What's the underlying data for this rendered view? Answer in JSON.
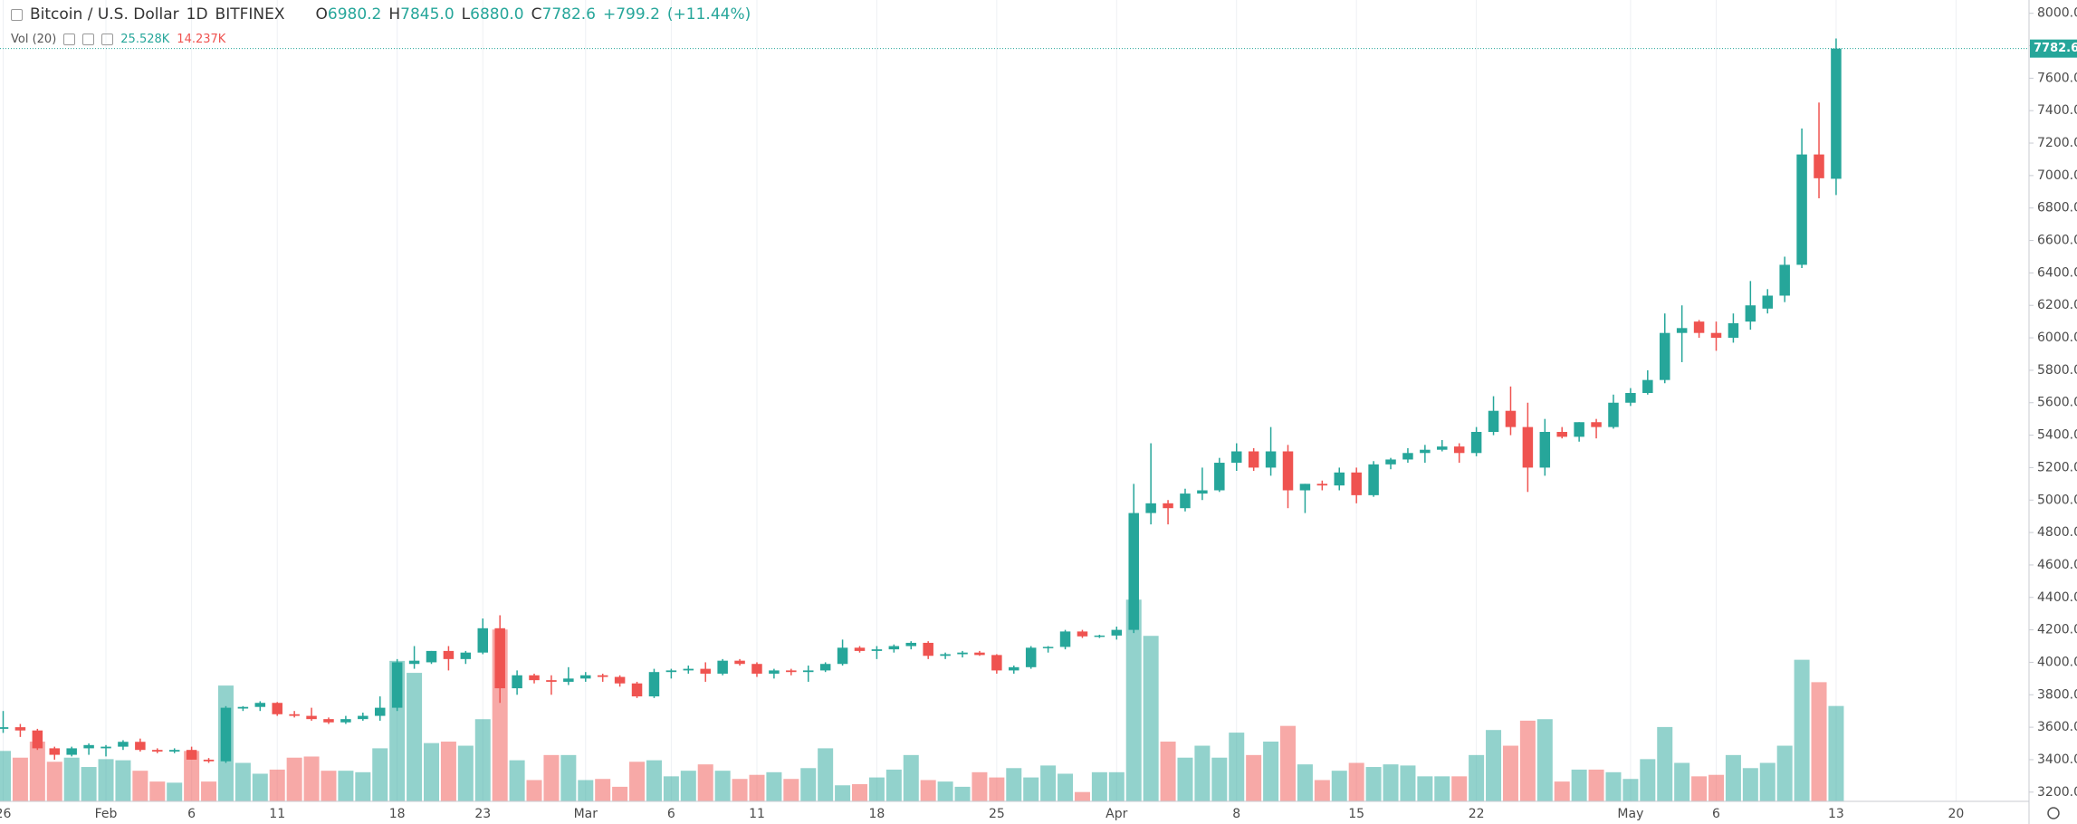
{
  "chart_data": {
    "type": "candlestick",
    "title": "Bitcoin / U.S. Dollar",
    "interval": "1D",
    "exchange": "BITFINEX",
    "legend": {
      "names": [
        "O",
        "H",
        "L",
        "C"
      ],
      "values": [
        6980.2,
        {
          "value": 7845,
          "label": "7845.0"
        },
        {
          "value": 6880,
          "label": "6880.0"
        },
        7782.6
      ]
    },
    "change": {
      "value": 799.2,
      "label": "+799.2"
    },
    "change_pct": {
      "value": 11.44,
      "label": "(+11.44%)"
    },
    "colors": {
      "up": "#26a69a",
      "down": "#ef5350"
    },
    "grid": true,
    "categories": [
      "26",
      null,
      null,
      null,
      null,
      null,
      "Feb",
      null,
      null,
      null,
      null,
      "6",
      null,
      null,
      null,
      null,
      "11",
      null,
      null,
      null,
      null,
      null,
      null,
      "18",
      null,
      null,
      null,
      null,
      "23",
      null,
      null,
      null,
      null,
      null,
      "Mar",
      null,
      null,
      null,
      null,
      "6",
      null,
      null,
      null,
      null,
      "11",
      null,
      null,
      null,
      null,
      null,
      null,
      "18",
      null,
      null,
      null,
      null,
      null,
      null,
      "25",
      null,
      null,
      null,
      null,
      null,
      null,
      "Apr",
      null,
      null,
      null,
      null,
      null,
      null,
      "8",
      null,
      null,
      null,
      null,
      null,
      null,
      "15",
      null,
      null,
      null,
      null,
      null,
      null,
      "22",
      null,
      null,
      null,
      null,
      null,
      null,
      null,
      null,
      "May",
      null,
      null,
      null,
      null,
      "6",
      null,
      null,
      null,
      null,
      null,
      null,
      "13",
      null,
      null,
      null,
      null,
      null,
      null,
      "20",
      null,
      null,
      null,
      null
    ],
    "open": [
      3590,
      3600,
      3580,
      3470,
      3430,
      3470,
      3470,
      3480,
      3510,
      3460,
      3450,
      3460,
      3400,
      3390,
      3715,
      3725,
      3750,
      3680,
      3670,
      3650,
      3630,
      3650,
      3670,
      3720,
      3990,
      4000,
      4070,
      4020,
      4060,
      4210,
      3840,
      3920,
      3890,
      3880,
      3900,
      3920,
      3910,
      3870,
      3790,
      3940,
      3950,
      3960,
      3930,
      4010,
      3990,
      3930,
      3950,
      3940,
      3950,
      3990,
      4090,
      4070,
      4080,
      4100,
      4120,
      4040,
      4050,
      4060,
      4045,
      3950,
      3970,
      4090,
      4095,
      4190,
      4160,
      4165,
      4200,
      4920,
      4980,
      4950,
      5040,
      5060,
      5230,
      5300,
      5200,
      5300,
      5060,
      5100,
      5090,
      5170,
      5030,
      5220,
      5250,
      5290,
      5310,
      5330,
      5290,
      5420,
      5550,
      5450,
      5200,
      5420,
      5390,
      5480,
      5450,
      5600,
      5660,
      5740,
      6030,
      6100,
      6030,
      6000,
      6100,
      6180,
      6260,
      6450,
      7130,
      6980.2,
      null,
      null,
      null,
      null,
      null,
      null,
      null,
      null,
      null,
      null,
      null
    ],
    "high": [
      3700,
      3620,
      3590,
      3480,
      3480,
      3500,
      3490,
      3520,
      3530,
      3470,
      3470,
      3480,
      3410,
      3730,
      3730,
      3760,
      3755,
      3700,
      3720,
      3660,
      3670,
      3690,
      3790,
      4020,
      4100,
      4070,
      4100,
      4070,
      4270,
      4290,
      3950,
      3930,
      3920,
      3970,
      3940,
      3930,
      3920,
      3880,
      3960,
      3960,
      3980,
      4000,
      4020,
      4020,
      4000,
      3960,
      3960,
      3980,
      4000,
      4140,
      4100,
      4100,
      4110,
      4130,
      4130,
      4060,
      4070,
      4070,
      4050,
      3980,
      4100,
      4100,
      4200,
      4200,
      4170,
      4220,
      5100,
      5350,
      5000,
      5070,
      5200,
      5260,
      5350,
      5320,
      5450,
      5340,
      5100,
      5120,
      5200,
      5200,
      5240,
      5260,
      5320,
      5340,
      5370,
      5350,
      5450,
      5640,
      5700,
      5600,
      5500,
      5450,
      5480,
      5500,
      5650,
      5690,
      5800,
      6150,
      6200,
      6110,
      6100,
      6150,
      6350,
      6300,
      6500,
      7290,
      7450,
      7845,
      null,
      null,
      null,
      null,
      null,
      null,
      null,
      null,
      null,
      null,
      null
    ],
    "low": [
      3565,
      3540,
      3460,
      3400,
      3420,
      3430,
      3420,
      3460,
      3450,
      3440,
      3440,
      3400,
      3380,
      3380,
      3700,
      3700,
      3670,
      3660,
      3640,
      3620,
      3620,
      3640,
      3640,
      3700,
      3960,
      3990,
      3950,
      3990,
      4050,
      3750,
      3800,
      3870,
      3800,
      3860,
      3880,
      3880,
      3850,
      3780,
      3780,
      3900,
      3930,
      3880,
      3920,
      3980,
      3910,
      3900,
      3920,
      3880,
      3940,
      3980,
      4060,
      4020,
      4060,
      4080,
      4020,
      4020,
      4030,
      4040,
      3930,
      3930,
      3960,
      4060,
      4080,
      4150,
      4150,
      4140,
      4180,
      4850,
      4850,
      4930,
      5000,
      5050,
      5180,
      5180,
      5150,
      4950,
      4920,
      5060,
      5060,
      4980,
      5020,
      5190,
      5230,
      5230,
      5300,
      5230,
      5270,
      5400,
      5400,
      5050,
      5150,
      5380,
      5360,
      5380,
      5440,
      5580,
      5650,
      5720,
      5850,
      6000,
      5920,
      5970,
      6050,
      6150,
      6220,
      6430,
      6860,
      6880,
      null,
      null,
      null,
      null,
      null,
      null,
      null,
      null,
      null,
      null,
      null
    ],
    "close": [
      3600,
      3580,
      3470,
      3430,
      3470,
      3490,
      3480,
      3510,
      3460,
      3450,
      3460,
      3400,
      3390,
      3720,
      3725,
      3750,
      3680,
      3670,
      3650,
      3630,
      3650,
      3670,
      3720,
      4000,
      4010,
      4070,
      4020,
      4060,
      4210,
      3840,
      3920,
      3890,
      3880,
      3900,
      3920,
      3910,
      3870,
      3790,
      3940,
      3950,
      3960,
      3930,
      4010,
      3990,
      3930,
      3950,
      3940,
      3950,
      3990,
      4090,
      4070,
      4080,
      4100,
      4120,
      4040,
      4050,
      4060,
      4045,
      3950,
      3970,
      4090,
      4095,
      4190,
      4160,
      4165,
      4200,
      4920,
      4980,
      4950,
      5040,
      5060,
      5230,
      5300,
      5200,
      5300,
      5060,
      5100,
      5090,
      5170,
      5030,
      5220,
      5250,
      5290,
      5310,
      5330,
      5290,
      5420,
      5550,
      5450,
      5200,
      5420,
      5390,
      5480,
      5450,
      5600,
      5660,
      5740,
      6030,
      6060,
      6030,
      6000,
      6090,
      6200,
      6260,
      6450,
      7130,
      6983.4,
      7782.6,
      null,
      null,
      null,
      null,
      null,
      null,
      null,
      null,
      null,
      null,
      null
    ],
    "ylim": [
      3143,
      8082
    ],
    "yticks": [
      {
        "value": 3200,
        "label": "3200.0"
      },
      {
        "value": 3400,
        "label": "3400.0"
      },
      {
        "value": 3600,
        "label": "3600.0"
      },
      {
        "value": 3800,
        "label": "3800.0"
      },
      {
        "value": 4000,
        "label": "4000.0"
      },
      {
        "value": 4200,
        "label": "4200.0"
      },
      {
        "value": 4400,
        "label": "4400.0"
      },
      {
        "value": 4600,
        "label": "4600.0"
      },
      {
        "value": 4800,
        "label": "4800.0"
      },
      {
        "value": 5000,
        "label": "5000.0"
      },
      {
        "value": 5200,
        "label": "5200.0"
      },
      {
        "value": 5400,
        "label": "5400.0"
      },
      {
        "value": 5600,
        "label": "5600.0"
      },
      {
        "value": 5800,
        "label": "5800.0"
      },
      {
        "value": 6000,
        "label": "6000.0"
      },
      {
        "value": 6200,
        "label": "6200.0"
      },
      {
        "value": 6400,
        "label": "6400.0"
      },
      {
        "value": 6600,
        "label": "6600.0"
      },
      {
        "value": 6800,
        "label": "6800.0"
      },
      {
        "value": 7000,
        "label": "7000.0"
      },
      {
        "value": 7200,
        "label": "7200.0"
      },
      {
        "value": 7400,
        "label": "7400.0"
      },
      {
        "value": 7600,
        "label": "7600.0"
      },
      {
        "value": 7800,
        "label": "7800.0"
      },
      {
        "value": 8000,
        "label": "8000.0"
      }
    ],
    "volume": {
      "name": "Vol (20)",
      "ylim": [
        0,
        214.5
      ],
      "values": [
        13.5,
        11.7,
        16,
        10.6,
        11.7,
        9.2,
        11.3,
        11,
        8.2,
        5.3,
        5,
        13.5,
        5.3,
        31,
        10.3,
        7.4,
        8.5,
        11.7,
        12,
        8.2,
        8.2,
        7.8,
        14.2,
        37.6,
        34.4,
        15.6,
        16,
        14.9,
        22,
        46,
        11,
        5.7,
        12.4,
        12.4,
        5.7,
        6,
        3.9,
        10.6,
        11,
        6.7,
        8.2,
        9.9,
        8.2,
        6,
        7.1,
        7.8,
        6,
        8.9,
        14.2,
        4.3,
        4.6,
        6.4,
        8.5,
        12.4,
        5.7,
        5.3,
        3.9,
        7.8,
        6.4,
        8.9,
        6.4,
        9.6,
        7.4,
        2.5,
        7.8,
        7.8,
        54,
        44.3,
        16,
        11.7,
        14.9,
        11.7,
        18.4,
        12.4,
        16,
        20.2,
        9.9,
        5.7,
        8.2,
        10.3,
        9.2,
        9.9,
        9.6,
        6.7,
        6.7,
        6.7,
        12.4,
        19.1,
        14.9,
        21.6,
        22,
        5.3,
        8.5,
        8.5,
        7.8,
        6,
        11.3,
        19.9,
        10.3,
        6.7,
        7.1,
        12.4,
        8.9,
        10.3,
        14.9,
        37.9,
        31.9,
        25.528,
        null,
        null,
        null,
        null,
        null,
        null,
        null,
        null,
        null,
        null,
        null
      ],
      "value_labels": [
        null,
        null,
        null,
        null,
        null,
        null,
        null,
        null,
        null,
        null,
        null,
        null,
        null,
        null,
        null,
        null,
        null,
        null,
        null,
        null,
        null,
        null,
        null,
        null,
        null,
        null,
        null,
        null,
        null,
        null,
        null,
        null,
        null,
        null,
        null,
        null,
        null,
        null,
        null,
        null,
        null,
        null,
        null,
        null,
        null,
        null,
        null,
        null,
        null,
        null,
        null,
        null,
        null,
        null,
        null,
        null,
        null,
        null,
        null,
        null,
        null,
        null,
        null,
        null,
        null,
        null,
        null,
        null,
        null,
        null,
        null,
        null,
        null,
        null,
        null,
        null,
        null,
        null,
        null,
        null,
        null,
        null,
        null,
        null,
        null,
        null,
        null,
        null,
        null,
        null,
        null,
        null,
        null,
        null,
        null,
        null,
        null,
        null,
        null,
        null,
        null,
        null,
        null,
        null,
        null,
        null,
        null,
        "25.528K",
        null,
        null,
        null,
        null,
        null,
        null,
        null,
        null,
        null,
        null,
        null
      ],
      "ma": {
        "value": 14.237,
        "label": "14.237K"
      }
    }
  }
}
